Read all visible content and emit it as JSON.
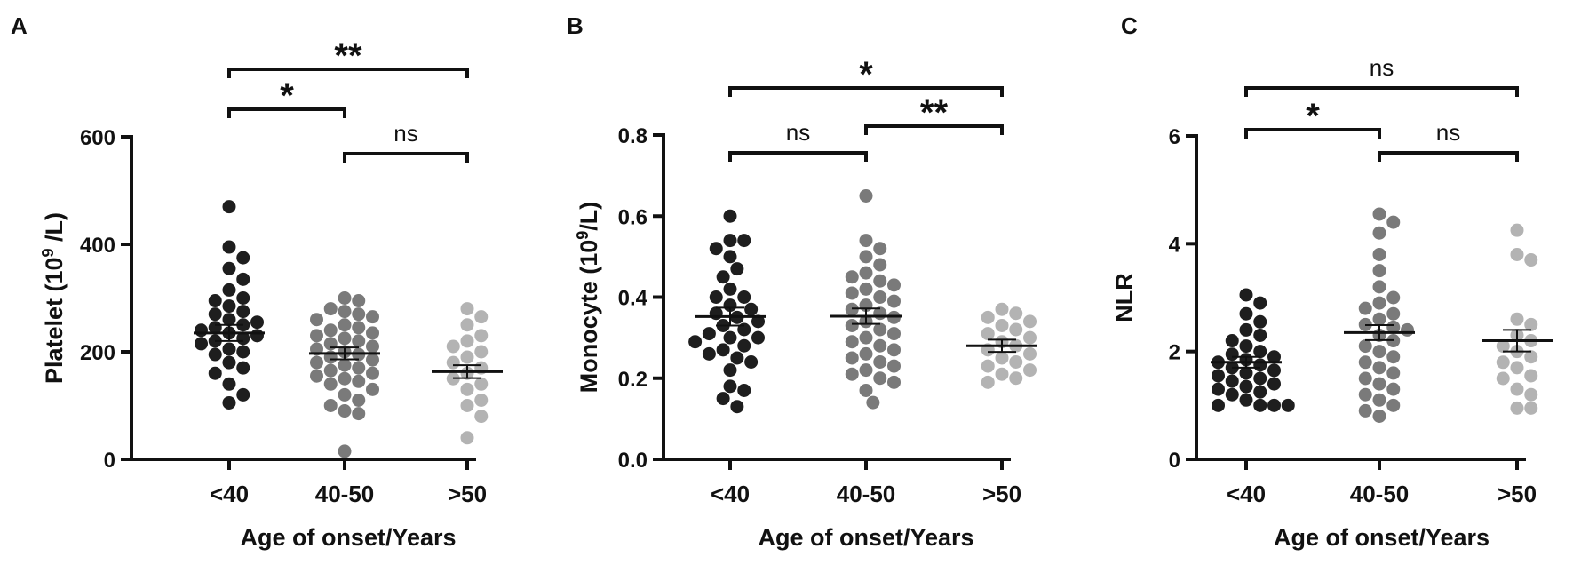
{
  "chart_data": [
    {
      "type": "scatter",
      "panel_label": "A",
      "ylabel_main": "Platelet (10",
      "ylabel_sup": "9",
      "ylabel_tail": " /L)",
      "xlabel": "Age of onset/Years",
      "categories": [
        "<40",
        "40-50",
        ">50"
      ],
      "ylim": [
        0,
        600
      ],
      "yticks": [
        0,
        200,
        400,
        600
      ],
      "ytick_labels": [
        "0",
        "200",
        "400",
        "600"
      ],
      "means": [
        235,
        197,
        163
      ],
      "sem": [
        15,
        11,
        12
      ],
      "series": [
        {
          "name": "<40",
          "color": "#1e1e1e",
          "values": [
            470,
            395,
            375,
            355,
            335,
            315,
            300,
            295,
            285,
            275,
            270,
            260,
            255,
            250,
            245,
            240,
            235,
            230,
            225,
            220,
            215,
            205,
            200,
            195,
            180,
            170,
            160,
            140,
            120,
            105
          ]
        },
        {
          "name": "40-50",
          "color": "#7a7a7a",
          "values": [
            300,
            295,
            280,
            275,
            270,
            265,
            260,
            250,
            245,
            240,
            235,
            230,
            225,
            220,
            215,
            210,
            205,
            200,
            195,
            190,
            185,
            180,
            175,
            170,
            165,
            160,
            155,
            150,
            145,
            140,
            130,
            120,
            110,
            100,
            90,
            85,
            15
          ]
        },
        {
          "name": ">50",
          "color": "#b3b3b3",
          "values": [
            280,
            265,
            250,
            230,
            220,
            210,
            200,
            190,
            180,
            170,
            160,
            150,
            140,
            130,
            110,
            100,
            80,
            40
          ]
        }
      ],
      "comparisons": [
        {
          "pair": [
            "<40",
            ">50"
          ],
          "label": "**"
        },
        {
          "pair": [
            "<40",
            "40-50"
          ],
          "label": "*"
        },
        {
          "pair": [
            "40-50",
            ">50"
          ],
          "label": "ns"
        }
      ]
    },
    {
      "type": "scatter",
      "panel_label": "B",
      "ylabel_main": "Monocyte (10",
      "ylabel_sup": "9",
      "ylabel_tail": "/L)",
      "xlabel": "Age of onset/Years",
      "categories": [
        "<40",
        "40-50",
        ">50"
      ],
      "ylim": [
        0,
        0.8
      ],
      "yticks": [
        0,
        0.2,
        0.4,
        0.6,
        0.8
      ],
      "ytick_labels": [
        "0.0",
        "0.2",
        "0.4",
        "0.6",
        "0.8"
      ],
      "means": [
        0.352,
        0.353,
        0.28
      ],
      "sem": [
        0.022,
        0.019,
        0.015
      ],
      "series": [
        {
          "name": "<40",
          "color": "#1e1e1e",
          "values": [
            0.6,
            0.54,
            0.54,
            0.52,
            0.5,
            0.47,
            0.45,
            0.42,
            0.4,
            0.4,
            0.38,
            0.37,
            0.36,
            0.35,
            0.34,
            0.33,
            0.32,
            0.31,
            0.3,
            0.3,
            0.29,
            0.28,
            0.27,
            0.26,
            0.25,
            0.24,
            0.22,
            0.18,
            0.17,
            0.15,
            0.13
          ]
        },
        {
          "name": "40-50",
          "color": "#7a7a7a",
          "values": [
            0.65,
            0.54,
            0.52,
            0.5,
            0.48,
            0.46,
            0.45,
            0.44,
            0.43,
            0.42,
            0.41,
            0.4,
            0.39,
            0.38,
            0.37,
            0.36,
            0.35,
            0.34,
            0.33,
            0.32,
            0.31,
            0.3,
            0.29,
            0.28,
            0.27,
            0.26,
            0.25,
            0.24,
            0.23,
            0.22,
            0.21,
            0.2,
            0.19,
            0.17,
            0.14
          ]
        },
        {
          "name": ">50",
          "color": "#b3b3b3",
          "values": [
            0.37,
            0.36,
            0.35,
            0.34,
            0.33,
            0.32,
            0.31,
            0.3,
            0.29,
            0.28,
            0.27,
            0.26,
            0.25,
            0.24,
            0.23,
            0.22,
            0.21,
            0.2,
            0.19
          ]
        }
      ],
      "comparisons": [
        {
          "pair": [
            "<40",
            ">50"
          ],
          "label": "*"
        },
        {
          "pair": [
            "40-50",
            ">50"
          ],
          "label": "**"
        },
        {
          "pair": [
            "<40",
            "40-50"
          ],
          "label": "ns"
        }
      ]
    },
    {
      "type": "scatter",
      "panel_label": "C",
      "ylabel_main": "NLR",
      "ylabel_sup": "",
      "ylabel_tail": "",
      "xlabel": "Age of onset/Years",
      "categories": [
        "<40",
        "40-50",
        ">50"
      ],
      "ylim": [
        0,
        6
      ],
      "yticks": [
        0,
        2,
        4,
        6
      ],
      "ytick_labels": [
        "0",
        "2",
        "4",
        "6"
      ],
      "means": [
        1.8,
        2.35,
        2.2
      ],
      "sem": [
        0.1,
        0.14,
        0.2
      ],
      "series": [
        {
          "name": "<40",
          "color": "#1e1e1e",
          "values": [
            3.05,
            2.9,
            2.7,
            2.55,
            2.4,
            2.3,
            2.2,
            2.1,
            2.0,
            1.95,
            1.9,
            1.85,
            1.8,
            1.75,
            1.7,
            1.65,
            1.6,
            1.55,
            1.5,
            1.45,
            1.4,
            1.35,
            1.3,
            1.25,
            1.2,
            1.1,
            1.0,
            1.0,
            1.0,
            1.0
          ]
        },
        {
          "name": "40-50",
          "color": "#7a7a7a",
          "values": [
            4.55,
            4.4,
            4.2,
            3.8,
            3.5,
            3.2,
            3.0,
            2.9,
            2.8,
            2.7,
            2.6,
            2.5,
            2.45,
            2.4,
            2.3,
            2.2,
            2.1,
            2.0,
            1.9,
            1.8,
            1.7,
            1.6,
            1.5,
            1.4,
            1.3,
            1.2,
            1.1,
            1.0,
            0.9,
            0.8
          ]
        },
        {
          "name": ">50",
          "color": "#b3b3b3",
          "values": [
            4.25,
            3.8,
            3.7,
            2.6,
            2.5,
            2.3,
            2.2,
            2.1,
            2.0,
            1.9,
            1.8,
            1.7,
            1.55,
            1.5,
            1.3,
            1.2,
            0.95,
            0.95
          ]
        }
      ],
      "comparisons": [
        {
          "pair": [
            "<40",
            ">50"
          ],
          "label": "ns"
        },
        {
          "pair": [
            "<40",
            "40-50"
          ],
          "label": "*"
        },
        {
          "pair": [
            "40-50",
            ">50"
          ],
          "label": "ns"
        }
      ]
    }
  ]
}
